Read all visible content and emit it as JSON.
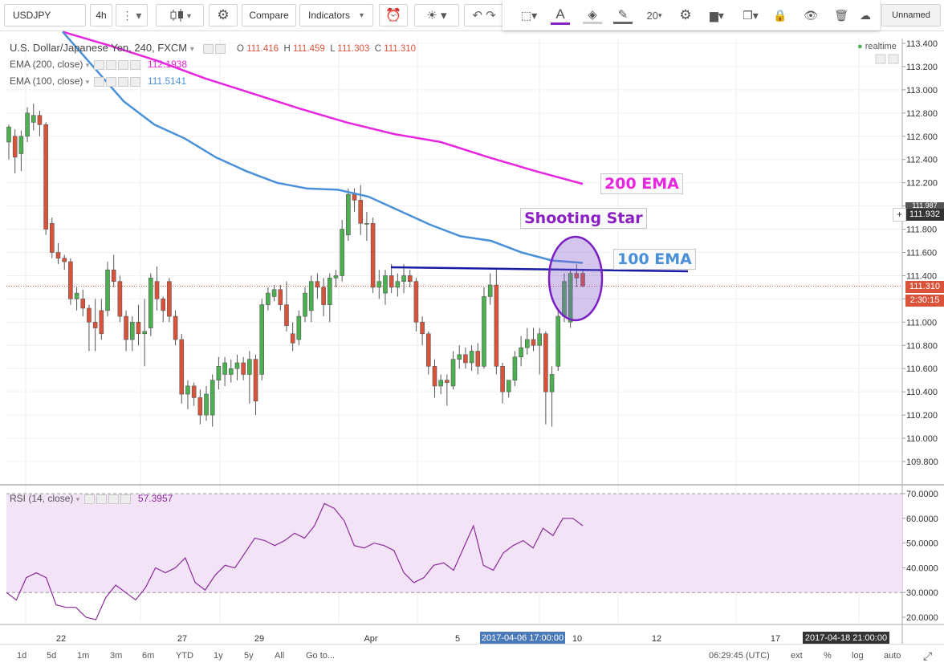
{
  "toolbar": {
    "symbol": "USDJPY",
    "interval": "4h",
    "compare_label": "Compare",
    "indicators_label": "Indicators",
    "line_width": "20",
    "layout_name": "Unnamed"
  },
  "legend": {
    "title": "U.S. Dollar/Japanese Yen, 240, FXCM",
    "o_label": "O",
    "o_value": "111.416",
    "h_label": "H",
    "h_value": "111.459",
    "l_label": "L",
    "l_value": "111.303",
    "c_label": "C",
    "c_value": "111.310",
    "ema200_label": "EMA (200, close)",
    "ema200_value": "112.1938",
    "ema100_label": "EMA (100, close)",
    "ema100_value": "111.5141",
    "realtime_label": "realtime",
    "rsi_label": "RSI (14, close)",
    "rsi_value": "57.3957"
  },
  "price_axis": {
    "ticks": [
      "113.400",
      "113.200",
      "113.000",
      "112.800",
      "112.600",
      "112.400",
      "112.200",
      "112.000",
      "111.800",
      "111.600",
      "111.400",
      "111.200",
      "111.000",
      "110.800",
      "110.600",
      "110.400",
      "110.200",
      "110.000",
      "109.800"
    ],
    "crosshair_tag": "111.932",
    "last_price_tag": "111.310",
    "countdown_tag": "2:30:15",
    "partial_tag": "111.987"
  },
  "rsi_axis": {
    "ticks": [
      "70.0000",
      "60.0000",
      "50.0000",
      "40.0000",
      "30.0000",
      "20.0000"
    ]
  },
  "time_axis": {
    "labels": [
      "22",
      "27",
      "29",
      "Apr",
      "5",
      "10",
      "12",
      "17"
    ],
    "highlight_left": "2017-04-06 17:00:00",
    "highlight_right": "2017-04-18 21:00:00"
  },
  "annotations": {
    "ema200": "200 EMA",
    "shooting_star": "Shooting Star",
    "ema100": "100 EMA"
  },
  "bottom_bar": {
    "ranges": [
      "1d",
      "5d",
      "1m",
      "3m",
      "6m",
      "YTD",
      "1y",
      "5y",
      "All"
    ],
    "goto_label": "Go to...",
    "clock": "06:29:45 (UTC)",
    "ext_label": "ext",
    "percent_label": "%",
    "log_label": "log",
    "auto_label": "auto"
  },
  "colors": {
    "up": "#4caf50",
    "down": "#d9533b",
    "ema200": "#e825e0",
    "ema100": "#4a90d9",
    "annot_line": "#1a1aa8",
    "circle": "#7a1fc2",
    "rsi_line": "#8a2a9a",
    "rsi_band": "#f3e3f7"
  },
  "chart_data": {
    "type": "candlestick",
    "title": "U.S. Dollar/Japanese Yen, 240, FXCM",
    "y_range": [
      109.7,
      113.45
    ],
    "candles": [
      {
        "o": 112.55,
        "h": 112.7,
        "l": 112.4,
        "c": 112.68
      },
      {
        "o": 112.6,
        "h": 112.66,
        "l": 112.28,
        "c": 112.42
      },
      {
        "o": 112.45,
        "h": 112.65,
        "l": 112.3,
        "c": 112.6
      },
      {
        "o": 112.6,
        "h": 112.85,
        "l": 112.55,
        "c": 112.8
      },
      {
        "o": 112.72,
        "h": 112.88,
        "l": 112.65,
        "c": 112.78
      },
      {
        "o": 112.78,
        "h": 112.82,
        "l": 112.6,
        "c": 112.7
      },
      {
        "o": 112.7,
        "h": 112.72,
        "l": 111.75,
        "c": 111.8
      },
      {
        "o": 111.85,
        "h": 111.9,
        "l": 111.55,
        "c": 111.6
      },
      {
        "o": 111.6,
        "h": 111.68,
        "l": 111.5,
        "c": 111.55
      },
      {
        "o": 111.55,
        "h": 111.58,
        "l": 111.45,
        "c": 111.52
      },
      {
        "o": 111.52,
        "h": 111.55,
        "l": 111.15,
        "c": 111.2
      },
      {
        "o": 111.2,
        "h": 111.3,
        "l": 111.1,
        "c": 111.25
      },
      {
        "o": 111.2,
        "h": 111.28,
        "l": 111.05,
        "c": 111.12
      },
      {
        "o": 111.12,
        "h": 111.15,
        "l": 110.75,
        "c": 111.0
      },
      {
        "o": 111.0,
        "h": 111.2,
        "l": 110.75,
        "c": 110.95
      },
      {
        "o": 111.1,
        "h": 111.2,
        "l": 110.85,
        "c": 110.9
      },
      {
        "o": 111.1,
        "h": 111.52,
        "l": 111.05,
        "c": 111.45
      },
      {
        "o": 111.45,
        "h": 111.58,
        "l": 111.3,
        "c": 111.35
      },
      {
        "o": 111.35,
        "h": 111.4,
        "l": 111.0,
        "c": 111.05
      },
      {
        "o": 111.05,
        "h": 111.1,
        "l": 110.75,
        "c": 110.85
      },
      {
        "o": 110.85,
        "h": 111.05,
        "l": 110.75,
        "c": 111.0
      },
      {
        "o": 111.0,
        "h": 111.15,
        "l": 110.8,
        "c": 110.9
      },
      {
        "o": 110.9,
        "h": 111.2,
        "l": 110.62,
        "c": 110.92
      },
      {
        "o": 110.95,
        "h": 111.42,
        "l": 110.88,
        "c": 111.38
      },
      {
        "o": 111.35,
        "h": 111.48,
        "l": 111.1,
        "c": 111.2
      },
      {
        "o": 111.2,
        "h": 111.22,
        "l": 111.0,
        "c": 111.1
      },
      {
        "o": 111.35,
        "h": 111.38,
        "l": 111.0,
        "c": 111.05
      },
      {
        "o": 111.05,
        "h": 111.1,
        "l": 110.8,
        "c": 110.85
      },
      {
        "o": 110.85,
        "h": 110.9,
        "l": 110.3,
        "c": 110.38
      },
      {
        "o": 110.38,
        "h": 110.5,
        "l": 110.25,
        "c": 110.45
      },
      {
        "o": 110.45,
        "h": 110.48,
        "l": 110.28,
        "c": 110.35
      },
      {
        "o": 110.35,
        "h": 110.42,
        "l": 110.12,
        "c": 110.2
      },
      {
        "o": 110.2,
        "h": 110.45,
        "l": 110.15,
        "c": 110.38
      },
      {
        "o": 110.2,
        "h": 110.55,
        "l": 110.1,
        "c": 110.5
      },
      {
        "o": 110.5,
        "h": 110.7,
        "l": 110.42,
        "c": 110.62
      },
      {
        "o": 110.55,
        "h": 110.7,
        "l": 110.45,
        "c": 110.65
      },
      {
        "o": 110.55,
        "h": 110.68,
        "l": 110.48,
        "c": 110.6
      },
      {
        "o": 110.6,
        "h": 110.72,
        "l": 110.5,
        "c": 110.65
      },
      {
        "o": 110.65,
        "h": 110.7,
        "l": 110.5,
        "c": 110.55
      },
      {
        "o": 110.55,
        "h": 110.75,
        "l": 110.3,
        "c": 110.68
      },
      {
        "o": 110.68,
        "h": 110.72,
        "l": 110.2,
        "c": 110.32
      },
      {
        "o": 110.55,
        "h": 111.2,
        "l": 110.5,
        "c": 111.15
      },
      {
        "o": 111.15,
        "h": 111.3,
        "l": 111.1,
        "c": 111.25
      },
      {
        "o": 111.22,
        "h": 111.32,
        "l": 111.18,
        "c": 111.28
      },
      {
        "o": 111.28,
        "h": 111.32,
        "l": 111.1,
        "c": 111.15
      },
      {
        "o": 111.15,
        "h": 111.35,
        "l": 110.92,
        "c": 110.97
      },
      {
        "o": 110.9,
        "h": 111.0,
        "l": 110.75,
        "c": 110.82
      },
      {
        "o": 110.85,
        "h": 111.1,
        "l": 110.8,
        "c": 111.05
      },
      {
        "o": 111.05,
        "h": 111.3,
        "l": 111.0,
        "c": 111.25
      },
      {
        "o": 111.1,
        "h": 111.4,
        "l": 111.0,
        "c": 111.35
      },
      {
        "o": 111.35,
        "h": 111.42,
        "l": 111.2,
        "c": 111.3
      },
      {
        "o": 111.3,
        "h": 111.38,
        "l": 111.05,
        "c": 111.15
      },
      {
        "o": 111.15,
        "h": 111.42,
        "l": 111.0,
        "c": 111.38
      },
      {
        "o": 111.38,
        "h": 111.45,
        "l": 111.3,
        "c": 111.4
      },
      {
        "o": 111.4,
        "h": 111.88,
        "l": 111.35,
        "c": 111.8
      },
      {
        "o": 111.75,
        "h": 112.15,
        "l": 111.7,
        "c": 112.1
      },
      {
        "o": 112.1,
        "h": 112.15,
        "l": 111.95,
        "c": 112.05
      },
      {
        "o": 112.05,
        "h": 112.18,
        "l": 111.75,
        "c": 111.85
      },
      {
        "o": 111.85,
        "h": 111.95,
        "l": 111.7,
        "c": 111.85
      },
      {
        "o": 111.85,
        "h": 111.9,
        "l": 111.25,
        "c": 111.3
      },
      {
        "o": 111.3,
        "h": 111.45,
        "l": 111.2,
        "c": 111.35
      },
      {
        "o": 111.25,
        "h": 111.45,
        "l": 111.15,
        "c": 111.4
      },
      {
        "o": 111.4,
        "h": 111.5,
        "l": 111.25,
        "c": 111.3
      },
      {
        "o": 111.3,
        "h": 111.42,
        "l": 111.22,
        "c": 111.35
      },
      {
        "o": 111.35,
        "h": 111.5,
        "l": 111.25,
        "c": 111.4
      },
      {
        "o": 111.4,
        "h": 111.45,
        "l": 111.3,
        "c": 111.35
      },
      {
        "o": 111.35,
        "h": 111.38,
        "l": 110.92,
        "c": 111.0
      },
      {
        "o": 111.0,
        "h": 111.05,
        "l": 110.8,
        "c": 110.9
      },
      {
        "o": 110.9,
        "h": 110.92,
        "l": 110.55,
        "c": 110.62
      },
      {
        "o": 110.62,
        "h": 110.68,
        "l": 110.35,
        "c": 110.45
      },
      {
        "o": 110.45,
        "h": 110.55,
        "l": 110.38,
        "c": 110.5
      },
      {
        "o": 110.5,
        "h": 110.55,
        "l": 110.28,
        "c": 110.48
      },
      {
        "o": 110.45,
        "h": 110.75,
        "l": 110.42,
        "c": 110.68
      },
      {
        "o": 110.68,
        "h": 110.8,
        "l": 110.6,
        "c": 110.72
      },
      {
        "o": 110.72,
        "h": 110.78,
        "l": 110.6,
        "c": 110.65
      },
      {
        "o": 110.65,
        "h": 110.8,
        "l": 110.58,
        "c": 110.75
      },
      {
        "o": 110.75,
        "h": 110.82,
        "l": 110.55,
        "c": 110.62
      },
      {
        "o": 110.62,
        "h": 111.3,
        "l": 110.6,
        "c": 111.22
      },
      {
        "o": 111.22,
        "h": 111.42,
        "l": 111.15,
        "c": 111.32
      },
      {
        "o": 111.32,
        "h": 111.45,
        "l": 110.55,
        "c": 110.62
      },
      {
        "o": 110.62,
        "h": 110.65,
        "l": 110.3,
        "c": 110.4
      },
      {
        "o": 110.4,
        "h": 110.5,
        "l": 110.35,
        "c": 110.5
      },
      {
        "o": 110.5,
        "h": 110.75,
        "l": 110.45,
        "c": 110.7
      },
      {
        "o": 110.7,
        "h": 110.88,
        "l": 110.62,
        "c": 110.78
      },
      {
        "o": 110.78,
        "h": 110.95,
        "l": 110.72,
        "c": 110.85
      },
      {
        "o": 110.85,
        "h": 110.95,
        "l": 110.75,
        "c": 110.8
      },
      {
        "o": 110.8,
        "h": 110.95,
        "l": 110.55,
        "c": 110.9
      },
      {
        "o": 110.9,
        "h": 110.92,
        "l": 110.12,
        "c": 110.4
      },
      {
        "o": 110.4,
        "h": 110.62,
        "l": 110.1,
        "c": 110.55
      },
      {
        "o": 110.62,
        "h": 111.1,
        "l": 110.58,
        "c": 111.05
      },
      {
        "o": 111.05,
        "h": 111.42,
        "l": 111.0,
        "c": 111.35
      },
      {
        "o": 111.0,
        "h": 111.45,
        "l": 110.95,
        "c": 111.42
      },
      {
        "o": 111.42,
        "h": 111.5,
        "l": 111.3,
        "c": 111.38
      },
      {
        "o": 111.42,
        "h": 111.46,
        "l": 111.3,
        "c": 111.31
      }
    ],
    "ema200": [
      113.5,
      113.38,
      113.25,
      113.1,
      112.97,
      112.84,
      112.72,
      112.62,
      112.55,
      112.42,
      112.3,
      112.19
    ],
    "ema100": [
      113.5,
      113.2,
      112.9,
      112.7,
      112.58,
      112.42,
      112.3,
      112.2,
      112.15,
      112.14,
      112.08,
      111.96,
      111.84,
      111.74,
      111.7,
      111.6,
      111.53,
      111.51
    ],
    "rsi": [
      30,
      27,
      36,
      38,
      36,
      25,
      24,
      24,
      20,
      19,
      28,
      33,
      30,
      27,
      32,
      40,
      38,
      40,
      44,
      34,
      31,
      37,
      41,
      40,
      46,
      52,
      51,
      49,
      51,
      54,
      52,
      57,
      66,
      64,
      59,
      49,
      48,
      50,
      49,
      47,
      38,
      34,
      36,
      41,
      42,
      39,
      48,
      57,
      41,
      39,
      46,
      49,
      51,
      48,
      56,
      53,
      60,
      60,
      57
    ]
  }
}
